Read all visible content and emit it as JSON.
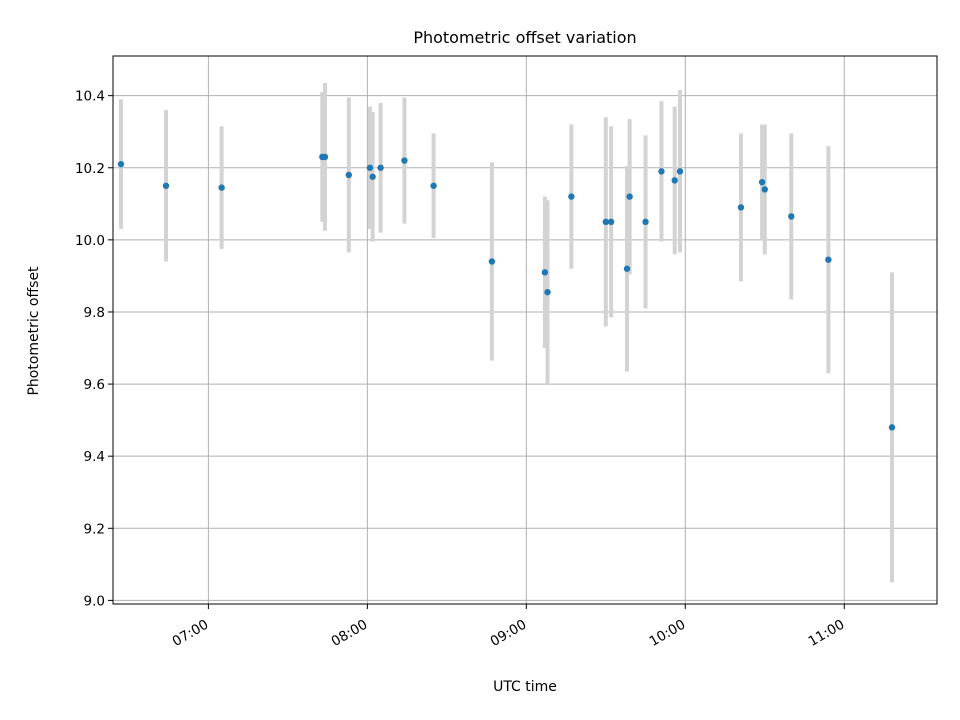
{
  "chart_data": {
    "type": "scatter",
    "title": "Photometric offset variation",
    "xlabel": "UTC time",
    "ylabel": "Photometric offset",
    "xlim": [
      "06:24",
      "11:35"
    ],
    "ylim": [
      8.99,
      10.51
    ],
    "x_ticks": [
      "07:00",
      "08:00",
      "09:00",
      "10:00",
      "11:00"
    ],
    "y_ticks": [
      "9.0",
      "9.2",
      "9.4",
      "9.6",
      "9.8",
      "10.0",
      "10.2",
      "10.4"
    ],
    "grid": true,
    "colors": {
      "points": "#1f77b4",
      "errorbars": "#d3d3d3",
      "grid": "#b0b0b0"
    },
    "points": [
      {
        "x": "06:27",
        "y": 10.21,
        "err": 0.18
      },
      {
        "x": "06:44",
        "y": 10.15,
        "err": 0.21
      },
      {
        "x": "07:05",
        "y": 10.145,
        "err": 0.17
      },
      {
        "x": "07:43",
        "y": 10.23,
        "err": 0.18
      },
      {
        "x": "07:44",
        "y": 10.23,
        "err": 0.205
      },
      {
        "x": "07:53",
        "y": 10.18,
        "err": 0.215
      },
      {
        "x": "08:01",
        "y": 10.2,
        "err": 0.17
      },
      {
        "x": "08:02",
        "y": 10.175,
        "err": 0.18
      },
      {
        "x": "08:05",
        "y": 10.2,
        "err": 0.18
      },
      {
        "x": "08:14",
        "y": 10.22,
        "err": 0.175
      },
      {
        "x": "08:25",
        "y": 10.15,
        "err": 0.145
      },
      {
        "x": "08:47",
        "y": 9.94,
        "err": 0.275
      },
      {
        "x": "09:07",
        "y": 9.91,
        "err": 0.21
      },
      {
        "x": "09:08",
        "y": 9.855,
        "err": 0.255
      },
      {
        "x": "09:17",
        "y": 10.12,
        "err": 0.2
      },
      {
        "x": "09:30",
        "y": 10.05,
        "err": 0.29
      },
      {
        "x": "09:32",
        "y": 10.05,
        "err": 0.265
      },
      {
        "x": "09:38",
        "y": 9.92,
        "err": 0.285
      },
      {
        "x": "09:39",
        "y": 10.12,
        "err": 0.215
      },
      {
        "x": "09:45",
        "y": 10.05,
        "err": 0.24
      },
      {
        "x": "09:51",
        "y": 10.19,
        "err": 0.195
      },
      {
        "x": "09:56",
        "y": 10.165,
        "err": 0.205
      },
      {
        "x": "09:58",
        "y": 10.19,
        "err": 0.225
      },
      {
        "x": "10:21",
        "y": 10.09,
        "err": 0.205
      },
      {
        "x": "10:29",
        "y": 10.16,
        "err": 0.16
      },
      {
        "x": "10:30",
        "y": 10.14,
        "err": 0.18
      },
      {
        "x": "10:40",
        "y": 10.065,
        "err": 0.23
      },
      {
        "x": "10:54",
        "y": 9.945,
        "err": 0.315
      },
      {
        "x": "11:18",
        "y": 9.48,
        "err": 0.43
      }
    ]
  }
}
